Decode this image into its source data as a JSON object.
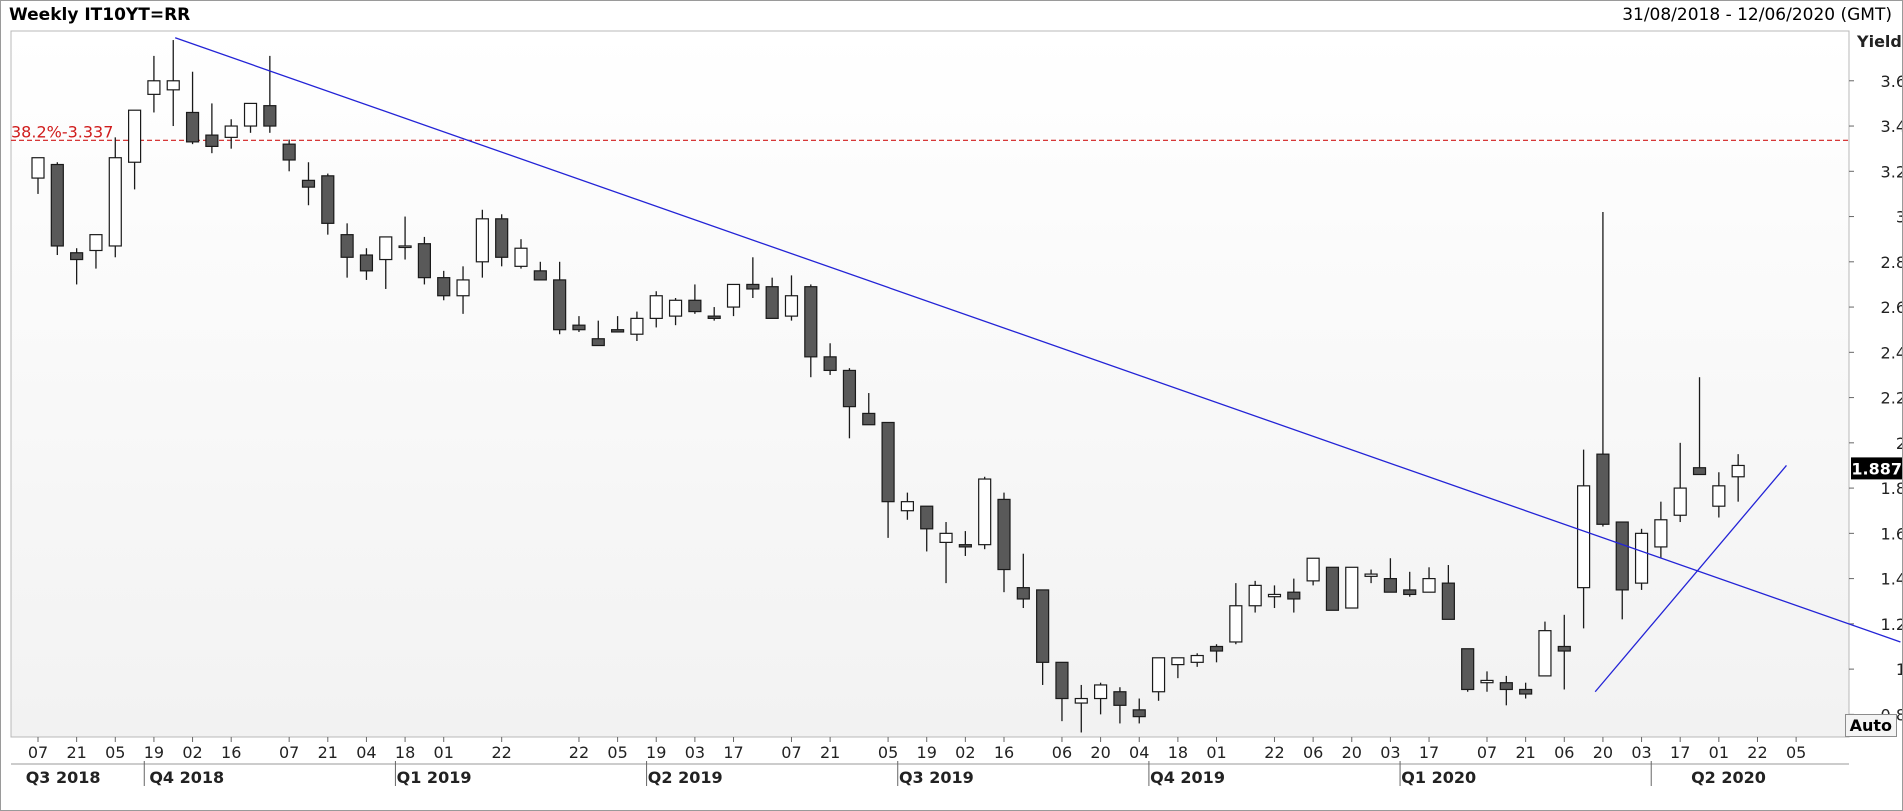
{
  "title": "Weekly IT10YT=RR",
  "date_range": "31/08/2018 - 12/06/2020 (GMT)",
  "auto_label": "Auto",
  "colors": {
    "down_candle": "#595959",
    "up_candle": "#ffffff",
    "trendline": "#2323d6",
    "fib_line": "#d01c1c",
    "last_price_bg": "#000000",
    "last_price_text": "#ffffff"
  },
  "chart_data": {
    "type": "candlestick",
    "ylabel": "Yield",
    "ylim": [
      0.7,
      3.82
    ],
    "yticks": [
      0.8,
      1,
      1.2,
      1.4,
      1.6,
      1.8,
      2,
      2.2,
      2.4,
      2.6,
      2.8,
      3,
      3.2,
      3.4,
      3.6
    ],
    "ytick_labels": [
      "0.8",
      "1",
      "1.2",
      "1.4",
      "1.6",
      "1.8",
      "2",
      "2.2",
      "2.4",
      "2.6",
      "2.8",
      "3",
      "3.2",
      "3.4",
      "3.6"
    ],
    "last_value_label": "1.887",
    "last_value": 1.887,
    "x_week_labels": [
      "07",
      "21",
      "05",
      "19",
      "02",
      "16",
      "07",
      "21",
      "04",
      "18",
      "01",
      "22",
      "22",
      "05",
      "19",
      "03",
      "17",
      "07",
      "21",
      "05",
      "19",
      "02",
      "16",
      "06",
      "20",
      "04",
      "18",
      "01",
      "22",
      "06",
      "20",
      "03",
      "17",
      "07",
      "21",
      "06",
      "20",
      "03",
      "17",
      "01",
      "22",
      "05"
    ],
    "x_week_label_index": [
      0,
      2,
      4,
      6,
      8,
      10,
      13,
      15,
      17,
      19,
      21,
      24,
      28,
      30,
      32,
      34,
      36,
      39,
      41,
      44,
      46,
      48,
      50,
      53,
      55,
      57,
      59,
      61,
      64,
      66,
      68,
      70,
      72,
      75,
      77,
      79,
      81,
      83,
      85,
      87,
      89,
      91
    ],
    "quarters": [
      {
        "label": "Q3 2018",
        "index": 1.3
      },
      {
        "label": "Q4 2018",
        "index": 7.7
      },
      {
        "label": "Q1 2019",
        "index": 20.5
      },
      {
        "label": "Q2 2019",
        "index": 33.5
      },
      {
        "label": "Q3 2019",
        "index": 46.5
      },
      {
        "label": "Q4 2019",
        "index": 59.5
      },
      {
        "label": "Q1 2020",
        "index": 72.5
      },
      {
        "label": "Q2 2020",
        "index": 87.5
      }
    ],
    "quarter_dividers": [
      5.5,
      18.5,
      31.5,
      44.5,
      57.5,
      70.5,
      83.5
    ],
    "candles": [
      [
        3.17,
        3.25,
        3.1,
        3.26
      ],
      [
        3.23,
        3.24,
        2.83,
        2.87
      ],
      [
        2.84,
        2.86,
        2.7,
        2.81
      ],
      [
        2.85,
        2.92,
        2.77,
        2.92
      ],
      [
        2.87,
        3.35,
        2.82,
        3.26
      ],
      [
        3.24,
        3.45,
        3.12,
        3.47
      ],
      [
        3.54,
        3.71,
        3.46,
        3.6
      ],
      [
        3.56,
        3.78,
        3.4,
        3.6
      ],
      [
        3.46,
        3.64,
        3.32,
        3.33
      ],
      [
        3.36,
        3.5,
        3.28,
        3.31
      ],
      [
        3.35,
        3.43,
        3.3,
        3.4
      ],
      [
        3.4,
        3.48,
        3.37,
        3.5
      ],
      [
        3.49,
        3.71,
        3.37,
        3.4
      ],
      [
        3.32,
        3.34,
        3.2,
        3.25
      ],
      [
        3.16,
        3.24,
        3.05,
        3.13
      ],
      [
        3.18,
        3.19,
        2.92,
        2.97
      ],
      [
        2.92,
        2.97,
        2.73,
        2.82
      ],
      [
        2.83,
        2.86,
        2.72,
        2.76
      ],
      [
        2.81,
        2.9,
        2.68,
        2.91
      ],
      [
        2.87,
        3.0,
        2.81,
        2.87
      ],
      [
        2.88,
        2.91,
        2.7,
        2.73
      ],
      [
        2.73,
        2.76,
        2.63,
        2.65
      ],
      [
        2.65,
        2.78,
        2.57,
        2.72
      ],
      [
        2.8,
        3.03,
        2.73,
        2.99
      ],
      [
        2.99,
        3.01,
        2.78,
        2.82
      ],
      [
        2.78,
        2.9,
        2.77,
        2.86
      ],
      [
        2.76,
        2.8,
        2.73,
        2.72
      ],
      [
        2.72,
        2.8,
        2.48,
        2.5
      ],
      [
        2.52,
        2.56,
        2.49,
        2.5
      ],
      [
        2.46,
        2.54,
        2.43,
        2.43
      ],
      [
        2.5,
        2.56,
        2.49,
        2.49
      ],
      [
        2.48,
        2.58,
        2.45,
        2.55
      ],
      [
        2.55,
        2.67,
        2.51,
        2.65
      ],
      [
        2.56,
        2.64,
        2.52,
        2.63
      ],
      [
        2.63,
        2.7,
        2.57,
        2.58
      ],
      [
        2.56,
        2.6,
        2.54,
        2.55
      ],
      [
        2.6,
        2.7,
        2.56,
        2.7
      ],
      [
        2.7,
        2.82,
        2.64,
        2.68
      ],
      [
        2.69,
        2.73,
        2.56,
        2.55
      ],
      [
        2.56,
        2.74,
        2.54,
        2.65
      ],
      [
        2.69,
        2.7,
        2.29,
        2.38
      ],
      [
        2.38,
        2.44,
        2.3,
        2.32
      ],
      [
        2.32,
        2.33,
        2.02,
        2.16
      ],
      [
        2.13,
        2.22,
        2.08,
        2.08
      ],
      [
        2.09,
        2.09,
        1.58,
        1.74
      ],
      [
        1.7,
        1.78,
        1.66,
        1.74
      ],
      [
        1.72,
        1.72,
        1.52,
        1.62
      ],
      [
        1.56,
        1.65,
        1.38,
        1.6
      ],
      [
        1.55,
        1.61,
        1.5,
        1.54
      ],
      [
        1.55,
        1.85,
        1.53,
        1.84
      ],
      [
        1.75,
        1.78,
        1.34,
        1.44
      ],
      [
        1.36,
        1.51,
        1.27,
        1.31
      ],
      [
        1.35,
        1.35,
        0.93,
        1.03
      ],
      [
        1.03,
        1.03,
        0.77,
        0.87
      ],
      [
        0.85,
        0.93,
        0.72,
        0.87
      ],
      [
        0.87,
        0.94,
        0.8,
        0.93
      ],
      [
        0.9,
        0.92,
        0.76,
        0.84
      ],
      [
        0.82,
        0.87,
        0.76,
        0.79
      ],
      [
        0.9,
        1.05,
        0.86,
        1.05
      ],
      [
        1.02,
        1.05,
        0.96,
        1.05
      ],
      [
        1.03,
        1.07,
        1.01,
        1.06
      ],
      [
        1.1,
        1.11,
        1.03,
        1.08
      ],
      [
        1.12,
        1.38,
        1.11,
        1.28
      ],
      [
        1.28,
        1.39,
        1.25,
        1.37
      ],
      [
        1.32,
        1.37,
        1.27,
        1.33
      ],
      [
        1.34,
        1.4,
        1.25,
        1.31
      ],
      [
        1.39,
        1.49,
        1.37,
        1.49
      ],
      [
        1.45,
        1.45,
        1.27,
        1.26
      ],
      [
        1.27,
        1.45,
        1.27,
        1.45
      ],
      [
        1.41,
        1.44,
        1.38,
        1.42
      ],
      [
        1.4,
        1.49,
        1.35,
        1.34
      ],
      [
        1.35,
        1.43,
        1.32,
        1.33
      ],
      [
        1.34,
        1.45,
        1.34,
        1.4
      ],
      [
        1.38,
        1.46,
        1.23,
        1.22
      ],
      [
        1.09,
        1.09,
        0.9,
        0.91
      ],
      [
        0.94,
        0.99,
        0.9,
        0.95
      ],
      [
        0.94,
        0.97,
        0.84,
        0.91
      ],
      [
        0.91,
        0.94,
        0.87,
        0.89
      ],
      [
        0.97,
        1.21,
        0.97,
        1.17
      ],
      [
        1.1,
        1.24,
        0.91,
        1.08
      ],
      [
        1.36,
        1.97,
        1.18,
        1.81
      ],
      [
        1.95,
        3.02,
        1.63,
        1.64
      ],
      [
        1.65,
        1.65,
        1.22,
        1.35
      ],
      [
        1.38,
        1.62,
        1.35,
        1.6
      ],
      [
        1.54,
        1.74,
        1.49,
        1.66
      ],
      [
        1.68,
        2.0,
        1.65,
        1.8
      ],
      [
        1.89,
        2.29,
        1.87,
        1.86
      ],
      [
        1.72,
        1.87,
        1.67,
        1.81
      ],
      [
        1.85,
        1.95,
        1.74,
        1.9
      ]
    ],
    "annotations": [
      {
        "type": "trendline",
        "from": [
          7.1,
          3.79
        ],
        "to": [
          96.4,
          1.12
        ]
      },
      {
        "type": "trendline",
        "from": [
          80.6,
          0.9
        ],
        "to": [
          90.5,
          1.9
        ]
      },
      {
        "type": "hline",
        "value": 3.337,
        "label": "38.2%-3.337"
      }
    ],
    "grid": false
  }
}
